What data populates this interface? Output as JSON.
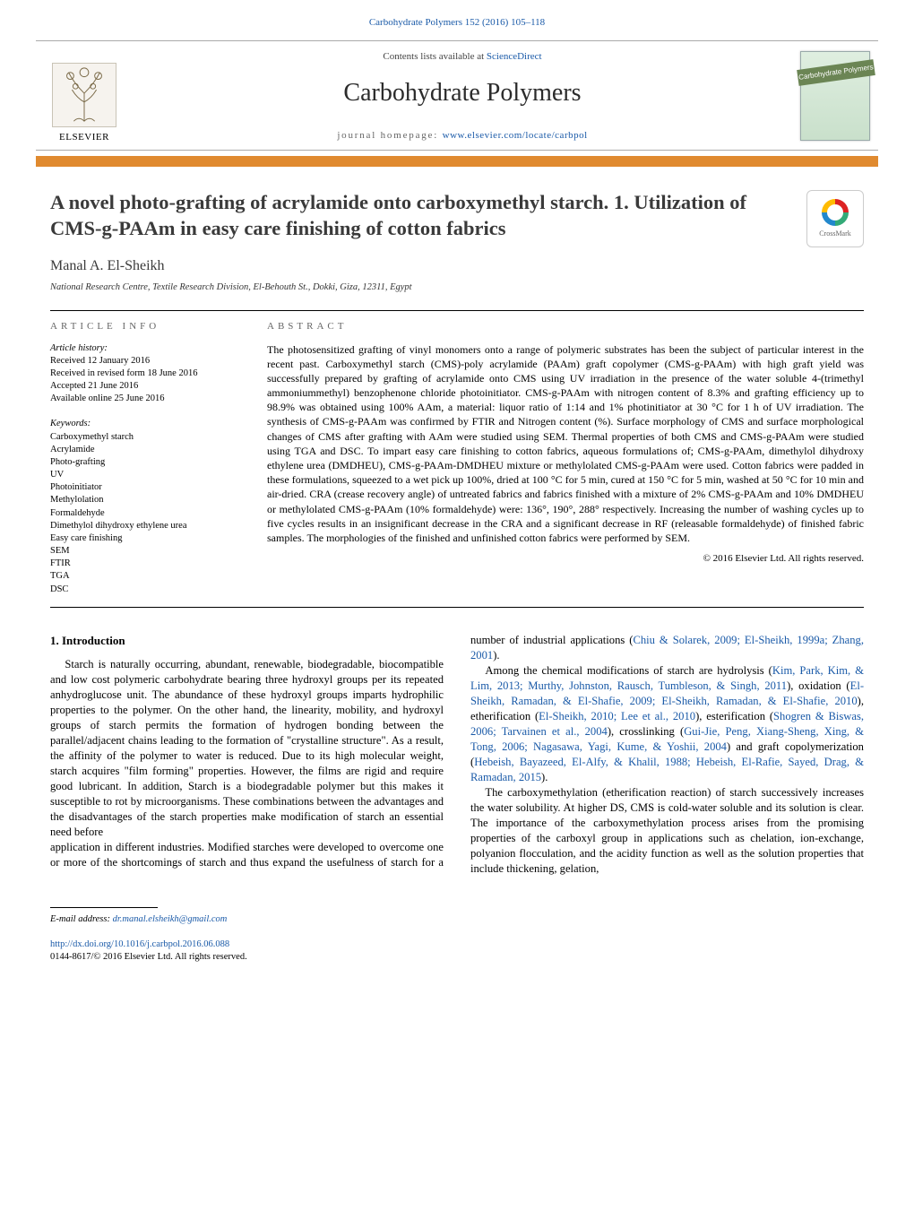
{
  "journal_cite": "Carbohydrate Polymers 152 (2016) 105–118",
  "header": {
    "contents_prefix": "Contents lists available at ",
    "contents_link": "ScienceDirect",
    "journal_name": "Carbohydrate Polymers",
    "homepage_prefix": "journal homepage: ",
    "homepage_url": "www.elsevier.com/locate/carbpol",
    "publisher": "ELSEVIER",
    "cover_banner": "Carbohydrate Polymers"
  },
  "colors": {
    "orange_bar": "#e08a2f",
    "link": "#1a5aa8",
    "text": "#000000",
    "title_gray": "#3a3a3a"
  },
  "title": "A novel photo-grafting of acrylamide onto carboxymethyl starch. 1. Utilization of CMS-g-PAAm in easy care finishing of cotton fabrics",
  "crossmark_label": "CrossMark",
  "author": "Manal A. El-Sheikh",
  "affiliation": "National Research Centre, Textile Research Division, El-Behouth St., Dokki, Giza, 12311, Egypt",
  "info_head": "article info",
  "abstract_head": "abstract",
  "history": {
    "label": "Article history:",
    "received": "Received 12 January 2016",
    "revised": "Received in revised form 18 June 2016",
    "accepted": "Accepted 21 June 2016",
    "online": "Available online 25 June 2016"
  },
  "keywords_label": "Keywords:",
  "keywords": [
    "Carboxymethyl starch",
    "Acrylamide",
    "Photo-grafting",
    "UV",
    "Photoinitiator",
    "Methylolation",
    "Formaldehyde",
    "Dimethylol dihydroxy ethylene urea",
    "Easy care finishing",
    "SEM",
    "FTIR",
    "TGA",
    "DSC"
  ],
  "abstract": "The photosensitized grafting of vinyl monomers onto a range of polymeric substrates has been the subject of particular interest in the recent past. Carboxymethyl starch (CMS)-poly acrylamide (PAAm) graft copolymer (CMS-g-PAAm) with high graft yield was successfully prepared by grafting of acrylamide onto CMS using UV irradiation in the presence of the water soluble 4-(trimethyl ammoniummethyl) benzophenone chloride photoinitiator. CMS-g-PAAm with nitrogen content of 8.3% and grafting efficiency up to 98.9% was obtained using 100% AAm, a material: liquor ratio of 1:14 and 1% photinitiator at 30 °C for 1 h of UV irradiation. The synthesis of CMS-g-PAAm was confirmed by FTIR and Nitrogen content (%). Surface morphology of CMS and surface morphological changes of CMS after grafting with AAm were studied using SEM. Thermal properties of both CMS and CMS-g-PAAm were studied using TGA and DSC. To impart easy care finishing to cotton fabrics, aqueous formulations of; CMS-g-PAAm, dimethylol dihydroxy ethylene urea (DMDHEU), CMS-g-PAAm-DMDHEU mixture or methylolated CMS-g-PAAm were used. Cotton fabrics were padded in these formulations, squeezed to a wet pick up 100%, dried at 100 °C for 5 min, cured at 150 °C for 5 min, washed at 50 °C for 10 min and air-dried. CRA (crease recovery angle) of untreated fabrics and fabrics finished with a mixture of 2% CMS-g-PAAm and 10% DMDHEU or methylolated CMS-g-PAAm (10% formaldehyde) were: 136°, 190°, 288° respectively. Increasing the number of washing cycles up to five cycles results in an insignificant decrease in the CRA and a significant decrease in RF (releasable formaldehyde) of finished fabric samples. The morphologies of the finished and unfinished cotton fabrics were performed by SEM.",
  "copyright": "© 2016 Elsevier Ltd. All rights reserved.",
  "intro_head": "1.  Introduction",
  "intro_p1": "Starch is naturally occurring, abundant, renewable, biodegradable, biocompatible and low cost polymeric carbohydrate bearing three hydroxyl groups per its repeated anhydroglucose unit. The abundance of these hydroxyl groups imparts hydrophilic properties to the polymer. On the other hand, the linearity, mobility, and hydroxyl groups of starch permits the formation of hydrogen bonding between the parallel/adjacent chains leading to the formation of \"crystalline structure\". As a result, the affinity of the polymer to water is reduced. Due to its high molecular weight, starch acquires \"film forming\" properties. However, the films are rigid and require good lubricant. In addition, Starch is a biodegradable polymer but this makes it susceptible to rot by microorganisms. These combinations between the advantages and the disadvantages of the starch properties make modification of starch an essential need before",
  "intro_p2a": "application in different industries. Modified starches were developed to overcome one or more of the shortcomings of starch and thus expand the usefulness of starch for a number of industrial applications (",
  "intro_p2_cite": "Chiu & Solarek, 2009; El-Sheikh, 1999a; Zhang, 2001",
  "intro_p2b": ").",
  "intro_p3a": "Among the chemical modifications of starch are hydrolysis (",
  "intro_p3_cite1": "Kim, Park, Kim, & Lim, 2013; Murthy, Johnston, Rausch, Tumbleson, & Singh, 2011",
  "intro_p3b": "), oxidation (",
  "intro_p3_cite2": "El-Sheikh, Ramadan, & El-Shafie, 2009; El-Sheikh, Ramadan, & El-Shafie, 2010",
  "intro_p3c": "), etherification (",
  "intro_p3_cite3": "El-Sheikh, 2010; Lee et al., 2010",
  "intro_p3d": "), esterification (",
  "intro_p3_cite4": "Shogren & Biswas, 2006; Tarvainen et al., 2004",
  "intro_p3e": "), crosslinking (",
  "intro_p3_cite5": "Gui-Jie, Peng, Xiang-Sheng, Xing, & Tong, 2006; Nagasawa, Yagi, Kume, & Yoshii, 2004",
  "intro_p3f": ") and graft copolymerization (",
  "intro_p3_cite6": "Hebeish, Bayazeed, El-Alfy, & Khalil, 1988; Hebeish, El-Rafie, Sayed, Drag, & Ramadan, 2015",
  "intro_p3g": ").",
  "intro_p4": "The carboxymethylation (etherification reaction) of starch successively increases the water solubility. At higher DS, CMS is cold-water soluble and its solution is clear. The importance of the carboxymethylation process arises from the promising properties of the carboxyl group in applications such as chelation, ion-exchange, polyanion flocculation, and the acidity function as well as the solution properties that include thickening, gelation,",
  "email_label": "E-mail address: ",
  "email": "dr.manal.elsheikh@gmail.com",
  "doi_url": "http://dx.doi.org/10.1016/j.carbpol.2016.06.088",
  "issn_line": "0144-8617/© 2016 Elsevier Ltd. All rights reserved."
}
